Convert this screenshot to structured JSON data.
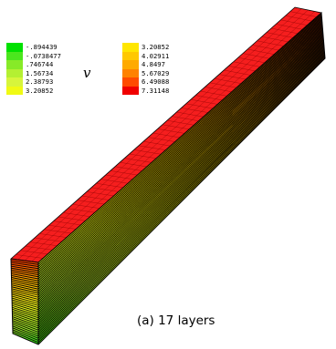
{
  "figure": {
    "variable_symbol": "v",
    "caption": "(a) 17 layers",
    "layer_count": 17
  },
  "legend_left": {
    "entries": [
      {
        "label": "-.894439",
        "color": "#00e100"
      },
      {
        "label": "-.0738477",
        "color": "#4be61e"
      },
      {
        "label": ".746744",
        "color": "#87ea28"
      },
      {
        "label": "1.56734",
        "color": "#b4f032"
      },
      {
        "label": "2.38793",
        "color": "#d7f53c"
      },
      {
        "label": "3.20852",
        "color": "#f0fa14"
      }
    ]
  },
  "legend_right": {
    "entries": [
      {
        "label": "3.20852",
        "color": "#ffe600"
      },
      {
        "label": "4.02911",
        "color": "#ffc800"
      },
      {
        "label": "4.8497",
        "color": "#ffaa00"
      },
      {
        "label": "5.67029",
        "color": "#ff8200"
      },
      {
        "label": "6.49088",
        "color": "#ff4b00"
      },
      {
        "label": "7.31148",
        "color": "#f00000"
      }
    ]
  },
  "colors": {
    "top_face": "#f51e1e",
    "edge": "#000000"
  }
}
